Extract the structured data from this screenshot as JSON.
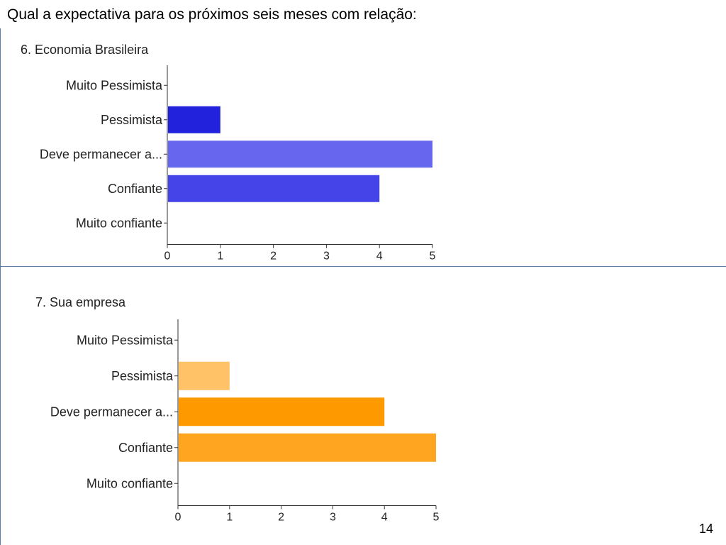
{
  "slide": {
    "heading": "Qual a expectativa para os próximos seis meses com relação:",
    "page_number": "14"
  },
  "chart_data": [
    {
      "type": "bar",
      "orientation": "horizontal",
      "title": "6. Economia Brasileira",
      "categories": [
        "Muito Pessimista",
        "Pessimista",
        "Deve permanecer a...",
        "Confiante",
        "Muito confiante"
      ],
      "values": [
        0,
        1,
        5,
        4,
        0
      ],
      "colors": [
        "#ffffff",
        "#2222dd",
        "#6666ee",
        "#4444e8",
        "#ffffff"
      ],
      "xlim": [
        0,
        5
      ],
      "xticks": [
        0,
        1,
        2,
        3,
        4,
        5
      ],
      "xlabel": "",
      "ylabel": "",
      "grid": false
    },
    {
      "type": "bar",
      "orientation": "horizontal",
      "title": "7. Sua empresa",
      "categories": [
        "Muito Pessimista",
        "Pessimista",
        "Deve permanecer a...",
        "Confiante",
        "Muito confiante"
      ],
      "values": [
        0,
        1,
        4,
        5,
        0
      ],
      "colors": [
        "#ffffff",
        "#ffc266",
        "#ff9900",
        "#ffa520",
        "#ffffff"
      ],
      "xlim": [
        0,
        5
      ],
      "xticks": [
        0,
        1,
        2,
        3,
        4,
        5
      ],
      "xlabel": "",
      "ylabel": "",
      "grid": false
    }
  ]
}
